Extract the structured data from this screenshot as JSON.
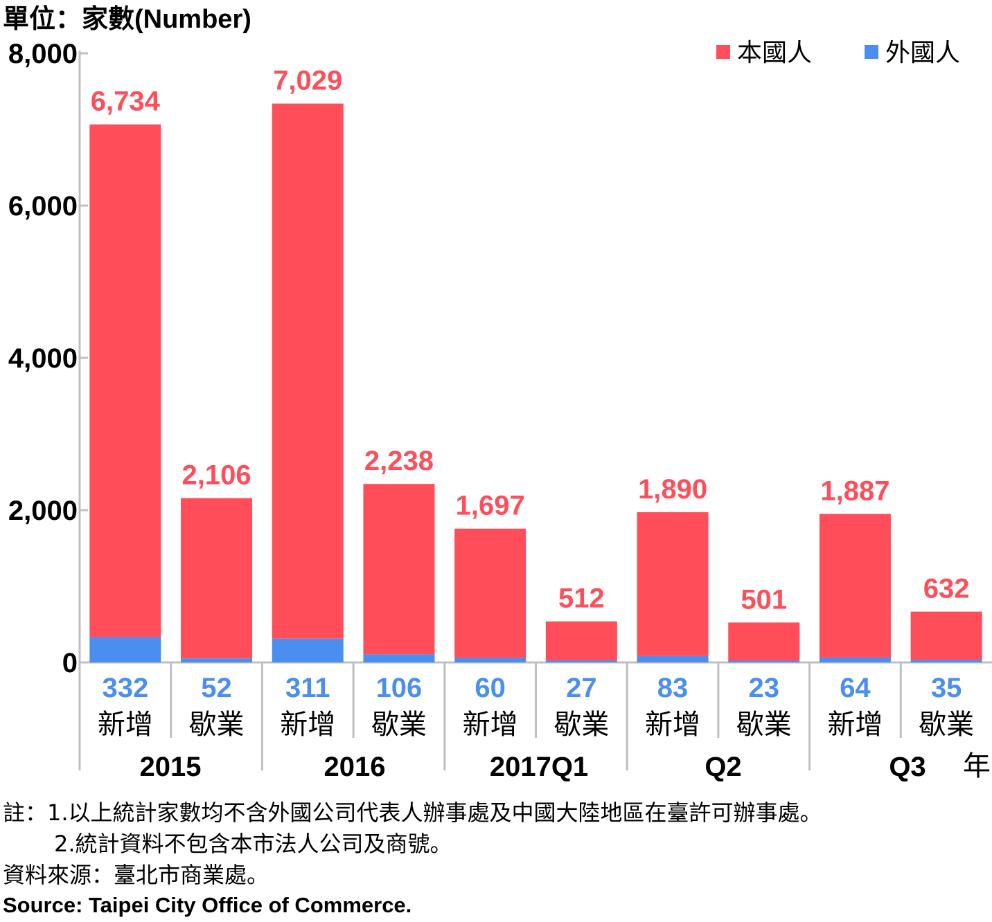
{
  "unit_label": "單位：家數(Number)",
  "year_label": "年",
  "colors": {
    "domestic": "#ff4d5a",
    "foreign": "#4a8ff0",
    "axis": "#bfbfbf"
  },
  "chart_data": {
    "type": "bar",
    "stacked": true,
    "categories": [
      "新增",
      "歇業",
      "新增",
      "歇業",
      "新增",
      "歇業",
      "新增",
      "歇業",
      "新增",
      "歇業"
    ],
    "groups": [
      "2015",
      "2016",
      "2017Q1",
      "Q2",
      "Q3"
    ],
    "series": [
      {
        "name": "外國人",
        "values": [
          332,
          52,
          311,
          106,
          60,
          27,
          83,
          23,
          64,
          35
        ]
      },
      {
        "name": "本國人",
        "values": [
          6734,
          2106,
          7029,
          2238,
          1697,
          512,
          1890,
          501,
          1887,
          632
        ]
      }
    ],
    "ylim": [
      0,
      8000
    ],
    "yticks": [
      "0",
      "2,000",
      "4,000",
      "6,000",
      "8,000"
    ],
    "legend_position": "top-right",
    "grid": false
  },
  "notes": {
    "line1": "註：1.以上統計家數均不含外國公司代表人辦事處及中國大陸地區在臺許可辦事處。",
    "line2": "2.統計資料不包含本市法人公司及商號。",
    "source_zh": "資料來源：臺北市商業處。",
    "source_en": "Source: Taipei City Office of Commerce."
  }
}
